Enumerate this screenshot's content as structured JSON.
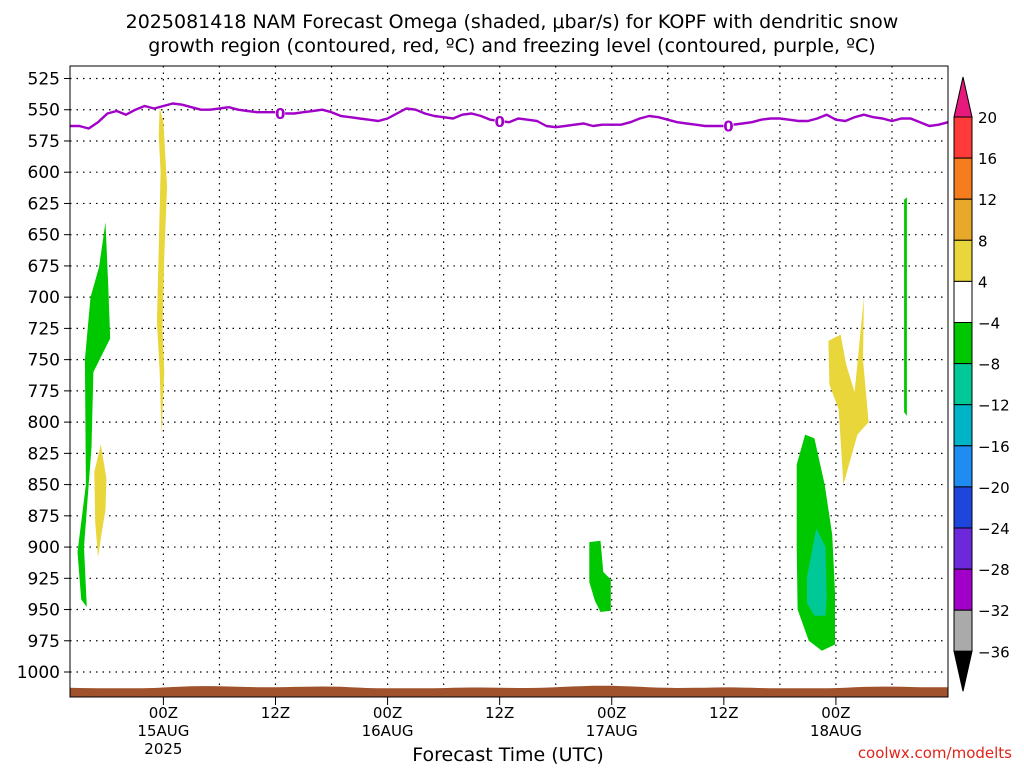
{
  "title_line1": "2025081418 NAM Forecast Omega (shaded, μbar/s) for KOPF with dendritic snow",
  "title_line2": "growth region (contoured, red, ºC) and freezing level (contoured, purple, ºC)",
  "credit": "coolwx.com/modelts",
  "chart_data": {
    "type": "contour",
    "xlabel": "Forecast Time (UTC)",
    "y_axis": {
      "ticks": [
        525,
        550,
        575,
        600,
        625,
        650,
        675,
        700,
        725,
        750,
        775,
        800,
        825,
        850,
        875,
        900,
        925,
        950,
        975,
        1000
      ],
      "range": [
        515,
        1020
      ],
      "reversed": true
    },
    "x_axis": {
      "range_hours": [
        -10,
        84
      ],
      "ticks": [
        {
          "hour": 0,
          "time": "00Z",
          "date": "15AUG",
          "year": "2025"
        },
        {
          "hour": 12,
          "time": "12Z",
          "date": "",
          "year": ""
        },
        {
          "hour": 24,
          "time": "00Z",
          "date": "16AUG",
          "year": ""
        },
        {
          "hour": 36,
          "time": "12Z",
          "date": "",
          "year": ""
        },
        {
          "hour": 48,
          "time": "00Z",
          "date": "17AUG",
          "year": ""
        },
        {
          "hour": 60,
          "time": "12Z",
          "date": "",
          "year": ""
        },
        {
          "hour": 72,
          "time": "00Z",
          "date": "18AUG",
          "year": ""
        }
      ]
    },
    "grid": true,
    "colorbar": {
      "labels": [
        "20",
        "16",
        "12",
        "8",
        "4",
        "−4",
        "−8",
        "−12",
        "−16",
        "−20",
        "−24",
        "−28",
        "−32",
        "−36"
      ],
      "colors": [
        "#ff3a3a",
        "#f57d1e",
        "#e8a82a",
        "#e8d63a",
        "#ffffff",
        "#00c800",
        "#00c896",
        "#00b4c8",
        "#1e8cf0",
        "#1e46dc",
        "#6e28dc",
        "#a000c8",
        "#aaaaaa"
      ],
      "top_color": "#e6197d",
      "bottom_color": "#000000"
    },
    "freezing_level": {
      "label": "0",
      "color": "#a000c8",
      "label_hours": [
        12.5,
        36.0,
        60.5
      ],
      "points": [
        [
          -10,
          563
        ],
        [
          -9,
          563
        ],
        [
          -8,
          565
        ],
        [
          -7,
          560
        ],
        [
          -6,
          553
        ],
        [
          -5,
          551
        ],
        [
          -4,
          554
        ],
        [
          -3,
          550
        ],
        [
          -2,
          547
        ],
        [
          -1,
          549
        ],
        [
          0,
          547
        ],
        [
          1,
          545
        ],
        [
          2,
          546
        ],
        [
          3,
          548
        ],
        [
          4,
          550
        ],
        [
          5,
          550
        ],
        [
          6,
          549
        ],
        [
          7,
          548
        ],
        [
          8,
          550
        ],
        [
          9,
          551
        ],
        [
          10,
          552
        ],
        [
          11,
          552
        ],
        [
          12,
          552
        ],
        [
          13,
          553
        ],
        [
          14,
          553
        ],
        [
          15,
          552
        ],
        [
          16,
          551
        ],
        [
          17,
          550
        ],
        [
          18,
          552
        ],
        [
          19,
          555
        ],
        [
          20,
          556
        ],
        [
          21,
          557
        ],
        [
          22,
          558
        ],
        [
          23,
          559
        ],
        [
          24,
          557
        ],
        [
          25,
          553
        ],
        [
          26,
          549
        ],
        [
          27,
          550
        ],
        [
          28,
          553
        ],
        [
          29,
          555
        ],
        [
          30,
          556
        ],
        [
          31,
          557
        ],
        [
          32,
          554
        ],
        [
          33,
          553
        ],
        [
          34,
          555
        ],
        [
          35,
          558
        ],
        [
          36,
          559
        ],
        [
          37,
          560
        ],
        [
          38,
          557
        ],
        [
          39,
          558
        ],
        [
          40,
          559
        ],
        [
          41,
          563
        ],
        [
          42,
          564
        ],
        [
          43,
          563
        ],
        [
          44,
          562
        ],
        [
          45,
          561
        ],
        [
          46,
          563
        ],
        [
          47,
          562
        ],
        [
          48,
          562
        ],
        [
          49,
          562
        ],
        [
          50,
          560
        ],
        [
          51,
          557
        ],
        [
          52,
          555
        ],
        [
          53,
          556
        ],
        [
          54,
          558
        ],
        [
          55,
          560
        ],
        [
          56,
          561
        ],
        [
          57,
          562
        ],
        [
          58,
          563
        ],
        [
          59,
          563
        ],
        [
          60,
          563
        ],
        [
          61,
          562
        ],
        [
          62,
          561
        ],
        [
          63,
          560
        ],
        [
          64,
          558
        ],
        [
          65,
          557
        ],
        [
          66,
          557
        ],
        [
          67,
          558
        ],
        [
          68,
          559
        ],
        [
          69,
          559
        ],
        [
          70,
          557
        ],
        [
          71,
          554
        ],
        [
          72,
          558
        ],
        [
          73,
          559
        ],
        [
          74,
          556
        ],
        [
          75,
          554
        ],
        [
          76,
          556
        ],
        [
          77,
          557
        ],
        [
          78,
          559
        ],
        [
          79,
          557
        ],
        [
          80,
          557
        ],
        [
          81,
          560
        ],
        [
          82,
          563
        ],
        [
          83,
          562
        ],
        [
          84,
          560
        ]
      ]
    },
    "shaded_regions": [
      {
        "value_class": "-4 to -8",
        "color": "#00c800",
        "points": [
          [
            -9.2,
            904
          ],
          [
            -8.3,
            850
          ],
          [
            -8.4,
            750
          ],
          [
            -7.8,
            700
          ],
          [
            -6.9,
            676
          ],
          [
            -6.2,
            640
          ],
          [
            -5.9,
            692
          ],
          [
            -5.7,
            733
          ],
          [
            -7.5,
            760
          ],
          [
            -7.7,
            820
          ],
          [
            -8.5,
            900
          ],
          [
            -8.2,
            948
          ],
          [
            -8.8,
            942
          ]
        ]
      },
      {
        "value_class": "4 to 8",
        "color": "#e8d63a",
        "points": [
          [
            -6.7,
            818
          ],
          [
            -6.1,
            845
          ],
          [
            -6.2,
            870
          ],
          [
            -6.6,
            888
          ],
          [
            -7.0,
            908
          ],
          [
            -7.3,
            880
          ],
          [
            -7.4,
            840
          ]
        ]
      },
      {
        "value_class": "4 to 8",
        "color": "#e8d63a",
        "points": [
          [
            -0.4,
            548
          ],
          [
            0.0,
            560
          ],
          [
            0.4,
            612
          ],
          [
            0.1,
            666
          ],
          [
            -0.1,
            726
          ],
          [
            0.1,
            760
          ],
          [
            -0.2,
            810
          ],
          [
            -0.4,
            760
          ],
          [
            -0.7,
            720
          ],
          [
            -0.5,
            662
          ],
          [
            -0.3,
            600
          ],
          [
            -0.5,
            570
          ]
        ]
      },
      {
        "value_class": "-4 to -8",
        "color": "#00c800",
        "points": [
          [
            45.6,
            896
          ],
          [
            46.8,
            895
          ],
          [
            47.1,
            920
          ],
          [
            47.9,
            926
          ],
          [
            47.9,
            951
          ],
          [
            46.8,
            952
          ],
          [
            46.2,
            943
          ],
          [
            45.6,
            928
          ]
        ]
      },
      {
        "value_class": "-4 to -8",
        "color": "#00c800",
        "points": [
          [
            67.8,
            834
          ],
          [
            68.7,
            810
          ],
          [
            69.7,
            813
          ],
          [
            70.8,
            850
          ],
          [
            71.6,
            890
          ],
          [
            71.9,
            936
          ],
          [
            71.9,
            978
          ],
          [
            70.5,
            983
          ],
          [
            69.1,
            975
          ],
          [
            67.9,
            950
          ],
          [
            67.8,
            900
          ]
        ]
      },
      {
        "value_class": "-8 to -12",
        "color": "#00c896",
        "points": [
          [
            68.9,
            924
          ],
          [
            69.9,
            885
          ],
          [
            70.9,
            900
          ],
          [
            71.0,
            940
          ],
          [
            70.9,
            955
          ],
          [
            69.7,
            955
          ],
          [
            68.9,
            945
          ]
        ]
      },
      {
        "value_class": "4 to 8",
        "color": "#e8d63a",
        "points": [
          [
            71.2,
            735
          ],
          [
            72.5,
            730
          ],
          [
            73.1,
            754
          ],
          [
            74.0,
            776
          ],
          [
            75.0,
            700
          ],
          [
            74.9,
            750
          ],
          [
            75.5,
            800
          ],
          [
            74.3,
            810
          ],
          [
            72.8,
            850
          ],
          [
            72.3,
            790
          ],
          [
            71.3,
            770
          ]
        ]
      },
      {
        "value_class": "-4 to -8",
        "color": "#00c800",
        "points": [
          [
            79.3,
            622
          ],
          [
            79.6,
            620
          ],
          [
            79.6,
            720
          ],
          [
            79.6,
            795
          ],
          [
            79.3,
            792
          ],
          [
            79.3,
            700
          ]
        ]
      }
    ],
    "ground": {
      "color": "#a0522d",
      "top_hpa": 1013,
      "bottom_hpa": 1020
    }
  }
}
